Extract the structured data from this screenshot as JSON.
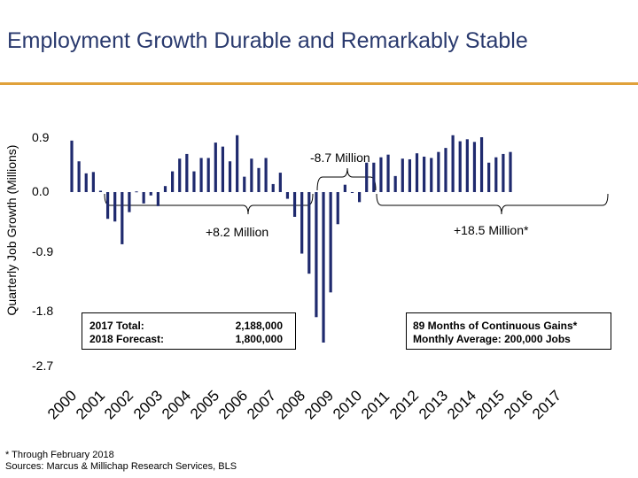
{
  "header": {
    "title": "Employment Growth Durable and Remarkably Stable"
  },
  "chart_data": {
    "type": "bar",
    "title": "Employment Growth Durable and Remarkably Stable",
    "ylabel": "Quarterly Job Growth (Millions)",
    "xlabel": "",
    "ylim": [
      -2.7,
      0.9
    ],
    "y_ticks": [
      "0.9",
      "0.0",
      "-0.9",
      "-1.8",
      "-2.7"
    ],
    "years": [
      "2000",
      "2001",
      "2002",
      "2003",
      "2004",
      "2005",
      "2006",
      "2007",
      "2008",
      "2009",
      "2010",
      "2011",
      "2012",
      "2013",
      "2014",
      "2015",
      "2016",
      "2017"
    ],
    "color": "#1f2a6e",
    "values": [
      0.77,
      0.46,
      0.28,
      0.3,
      0.02,
      -0.4,
      -0.44,
      -0.78,
      -0.3,
      0.01,
      -0.17,
      -0.05,
      -0.21,
      0.09,
      0.31,
      0.5,
      0.57,
      0.31,
      0.51,
      0.51,
      0.74,
      0.68,
      0.46,
      0.85,
      0.23,
      0.5,
      0.36,
      0.51,
      0.12,
      0.29,
      -0.1,
      -0.37,
      -0.92,
      -1.22,
      -1.87,
      -2.25,
      -1.5,
      -0.48,
      0.11,
      0.0,
      -0.15,
      0.44,
      0.44,
      0.52,
      0.56,
      0.24,
      0.5,
      0.49,
      0.58,
      0.53,
      0.51,
      0.6,
      0.66,
      0.85,
      0.76,
      0.79,
      0.75,
      0.82,
      0.44,
      0.52,
      0.57,
      0.6
    ],
    "annotations": {
      "mid": "-8.7 Million",
      "left": "+8.2 Million",
      "right": "+18.5 Million*"
    },
    "boxes": {
      "left_labels": [
        "2017 Total:",
        "2018 Forecast:"
      ],
      "left_values": [
        "2,188,000",
        "1,800,000"
      ],
      "right_lines": [
        "89 Months of Continuous Gains*",
        "Monthly Average: 200,000 Jobs"
      ]
    }
  },
  "footnotes": [
    "* Through February 2018",
    "Sources: Marcus & Millichap Research Services, BLS"
  ]
}
